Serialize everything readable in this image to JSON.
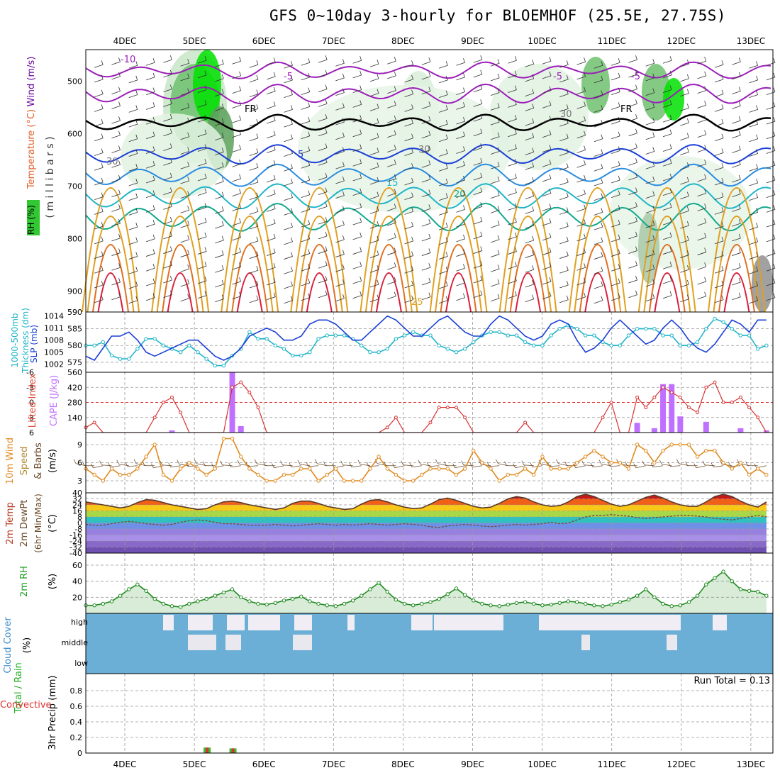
{
  "title": "GFS 0~10day 3-hourly for BLOEMHOF (25.5E, 27.75S)",
  "dates": [
    "4DEC",
    "5DEC",
    "6DEC",
    "7DEC",
    "8DEC",
    "9DEC",
    "10DEC",
    "11DEC",
    "12DEC",
    "13DEC"
  ],
  "colors": {
    "grid": "#999999",
    "rh_green": "#00e000",
    "rh_band": "#7fbf7f",
    "purple": "#9b1fb8",
    "blue": "#1a3fd6",
    "cyan": "#20b5c8",
    "teal": "#12a98e",
    "orange": "#e0a020",
    "red": "#d81e3a",
    "cape": "#c070ff",
    "cloud": "#6baed6",
    "clear": "#f0eef4",
    "wind": "#e08a1e"
  },
  "chart_data": [
    {
      "panel": "upper-air",
      "type": "heatmap",
      "ylabels": [
        "Wind (m/s)",
        "Temperature (°C)",
        "( m i l l i b a r s )",
        "RH (%)"
      ],
      "yticks": [
        500,
        600,
        700,
        800,
        900
      ],
      "ylim": [
        440,
        940
      ],
      "contour_labels": [
        "-10",
        "-5",
        "-5",
        "FR",
        "FR",
        "-5",
        "5",
        "15",
        "20",
        "25",
        "30",
        "30",
        "30"
      ]
    },
    {
      "panel": "thickness-slp",
      "type": "line",
      "ylabels_left": [
        "1000-500mb",
        "Thickness (dm)"
      ],
      "ylabel_right": "SLP (mb)",
      "yticks_left": [
        575,
        580,
        585,
        590
      ],
      "yticks_right": [
        1002,
        1005,
        1008,
        1011,
        1014
      ],
      "ylim_left": [
        572,
        590
      ],
      "series": [
        {
          "name": "Thickness",
          "color": "cyan",
          "values": [
            580,
            580,
            581,
            577,
            576,
            576,
            579,
            582,
            582,
            580,
            579,
            578,
            580,
            578,
            576,
            574,
            574,
            577,
            579,
            584,
            582,
            582,
            580,
            579,
            577,
            577,
            578,
            582,
            583,
            583,
            583,
            582,
            580,
            578,
            578,
            579,
            582,
            583,
            584,
            583,
            583,
            580,
            579,
            578,
            579,
            581,
            583,
            584,
            584,
            583,
            583,
            581,
            580,
            580,
            583,
            585,
            586,
            585,
            583,
            583,
            581,
            580,
            580,
            583,
            585,
            585,
            585,
            583,
            583,
            580,
            580,
            581,
            585,
            588,
            587,
            585,
            583,
            583,
            579,
            580
          ]
        },
        {
          "name": "SLP",
          "color": "blue",
          "values": [
            1004,
            1003,
            1006,
            1009,
            1009,
            1010,
            1008,
            1005,
            1004,
            1005,
            1006,
            1007,
            1008,
            1008,
            1006,
            1004,
            1003,
            1004,
            1006,
            1009,
            1010,
            1011,
            1010,
            1008,
            1008,
            1009,
            1012,
            1013,
            1013,
            1012,
            1010,
            1008,
            1008,
            1010,
            1012,
            1014,
            1013,
            1011,
            1009,
            1009,
            1011,
            1013,
            1014,
            1012,
            1010,
            1009,
            1009,
            1012,
            1014,
            1013,
            1011,
            1009,
            1008,
            1009,
            1012,
            1013,
            1012,
            1008,
            1005,
            1006,
            1008,
            1011,
            1013,
            1011,
            1009,
            1007,
            1008,
            1011,
            1013,
            1011,
            1008,
            1006,
            1005,
            1007,
            1010,
            1013,
            1012,
            1010,
            1013,
            1013
          ]
        }
      ]
    },
    {
      "panel": "stability",
      "type": "bar",
      "ylabels_left": [
        "Lifted Index"
      ],
      "ylabel_right": "CAPE (J/kg)",
      "yticks_left": [
        6,
        3,
        0,
        -3,
        -6
      ],
      "yticks_right": [
        140,
        280,
        420,
        560
      ],
      "lifted_index": [
        5,
        4,
        6,
        6,
        6,
        6,
        6,
        6,
        3,
        0,
        -1,
        2,
        6,
        6,
        6,
        6,
        6,
        -3,
        -4,
        -2,
        1,
        6,
        6,
        6,
        6,
        6,
        6,
        6,
        6,
        6,
        6,
        6,
        6,
        6,
        6,
        5,
        3,
        6,
        6,
        6,
        4,
        1,
        1,
        1,
        3,
        6,
        6,
        6,
        6,
        6,
        6,
        4,
        6,
        6,
        6,
        6,
        6,
        6,
        6,
        6,
        3,
        0,
        6,
        6,
        -1,
        1,
        -1,
        -3,
        -2,
        -1,
        1,
        2,
        -3,
        -4,
        0,
        0,
        -1,
        1,
        3,
        6
      ],
      "cape": {
        "indices": [
          10,
          17,
          18,
          64,
          66,
          67,
          68,
          69,
          72,
          76,
          79
        ],
        "values": [
          20,
          560,
          60,
          90,
          40,
          450,
          450,
          150,
          100,
          40,
          20
        ]
      }
    },
    {
      "panel": "wind10m",
      "type": "line",
      "ylabels": [
        "10m Wind",
        "Speed",
        "& Barbs",
        "(m/s)"
      ],
      "yticks": [
        3,
        6,
        9
      ],
      "ylim": [
        1,
        11
      ],
      "series": [
        {
          "name": "Speed",
          "color": "wind",
          "values": [
            5,
            4,
            3,
            5,
            4,
            4,
            5,
            7,
            9,
            4,
            3,
            5,
            6,
            5,
            4,
            5,
            10,
            10,
            7,
            5,
            4,
            3,
            3,
            4,
            4,
            5,
            5,
            3,
            4,
            5,
            3,
            3,
            3,
            5,
            7,
            5,
            4,
            3,
            3,
            4,
            5,
            5,
            5,
            4,
            5,
            8,
            6,
            5,
            3,
            4,
            4,
            5,
            4,
            7,
            5,
            5,
            5,
            6,
            7,
            8,
            7,
            6,
            6,
            5,
            9,
            8,
            6,
            8,
            9,
            9,
            9,
            7,
            8,
            8,
            6,
            5,
            6,
            4,
            5,
            4
          ]
        }
      ]
    },
    {
      "panel": "temperature",
      "type": "area",
      "ylabels": [
        "2m Temp",
        "2m DewPt",
        "(6hr Min/Max)",
        "(°C)"
      ],
      "yticks": [
        40,
        32,
        24,
        16,
        8,
        0,
        -8,
        -16,
        -24,
        -32,
        -40
      ],
      "temp": [
        28,
        26,
        24,
        22,
        20,
        22,
        27,
        31,
        30,
        27,
        24,
        22,
        20,
        18,
        19,
        24,
        28,
        29,
        27,
        24,
        22,
        20,
        18,
        20,
        26,
        29,
        29,
        26,
        22,
        20,
        18,
        19,
        25,
        30,
        31,
        28,
        24,
        21,
        19,
        20,
        25,
        31,
        33,
        30,
        26,
        22,
        20,
        21,
        26,
        32,
        35,
        33,
        28,
        24,
        22,
        23,
        28,
        35,
        38,
        35,
        30,
        25,
        22,
        24,
        29,
        34,
        37,
        33,
        28,
        24,
        22,
        22,
        28,
        35,
        38,
        35,
        29,
        24,
        21,
        28
      ],
      "dewpoint": [
        -2,
        -3,
        -3,
        -1,
        1,
        2,
        1,
        -1,
        -2,
        -3,
        -2,
        1,
        3,
        4,
        3,
        1,
        -1,
        -1,
        -2,
        -3,
        -3,
        -3,
        -2,
        -3,
        -4,
        -3,
        -2,
        -1,
        -2,
        -3,
        -2,
        -3,
        -2,
        -1,
        -2,
        -3,
        -2,
        -1,
        -2,
        -3,
        -5,
        -6,
        -4,
        -3,
        -2,
        -3,
        -4,
        -5,
        -4,
        -3,
        -2,
        -3,
        -2,
        -1,
        1,
        -1,
        0,
        4,
        8,
        10,
        10,
        11,
        10,
        9,
        7,
        6,
        7,
        8,
        9,
        10,
        10,
        9,
        8,
        6,
        5,
        4,
        6,
        8,
        10,
        8
      ]
    },
    {
      "panel": "rh2m",
      "type": "area",
      "ylabels": [
        "2m RH",
        "(%)"
      ],
      "yticks": [
        20,
        40,
        60
      ],
      "ylim": [
        0,
        75
      ],
      "series": [
        {
          "name": "2m RH",
          "color": "rh_green",
          "values": [
            10,
            10,
            12,
            15,
            22,
            30,
            36,
            28,
            18,
            12,
            9,
            8,
            12,
            15,
            18,
            22,
            26,
            30,
            20,
            15,
            12,
            11,
            13,
            16,
            18,
            21,
            15,
            12,
            10,
            9,
            12,
            16,
            22,
            30,
            38,
            27,
            17,
            12,
            10,
            12,
            14,
            18,
            24,
            31,
            23,
            16,
            12,
            10,
            9,
            11,
            13,
            14,
            12,
            10,
            11,
            13,
            15,
            14,
            12,
            10,
            9,
            11,
            14,
            17,
            22,
            30,
            20,
            12,
            9,
            10,
            14,
            22,
            36,
            44,
            52,
            40,
            30,
            28,
            27,
            22
          ]
        }
      ]
    },
    {
      "panel": "cloud",
      "type": "heatmap",
      "ylabels": [
        "Cloud Cover",
        "(%)"
      ],
      "levels": [
        "high",
        "middle",
        "low"
      ]
    },
    {
      "panel": "precip",
      "type": "bar",
      "ylabels": [
        "Total / Rain",
        "Convective",
        "3hr Precip (mm)"
      ],
      "yticks": [
        0,
        0.2,
        0.4,
        0.6,
        0.8
      ],
      "ylim": [
        0,
        1
      ],
      "run_total": "Run Total = 0.13",
      "bars": [
        {
          "index": 14,
          "total": 0.07,
          "convective": 0.07
        },
        {
          "index": 17,
          "total": 0.06,
          "convective": 0.06
        }
      ]
    }
  ]
}
